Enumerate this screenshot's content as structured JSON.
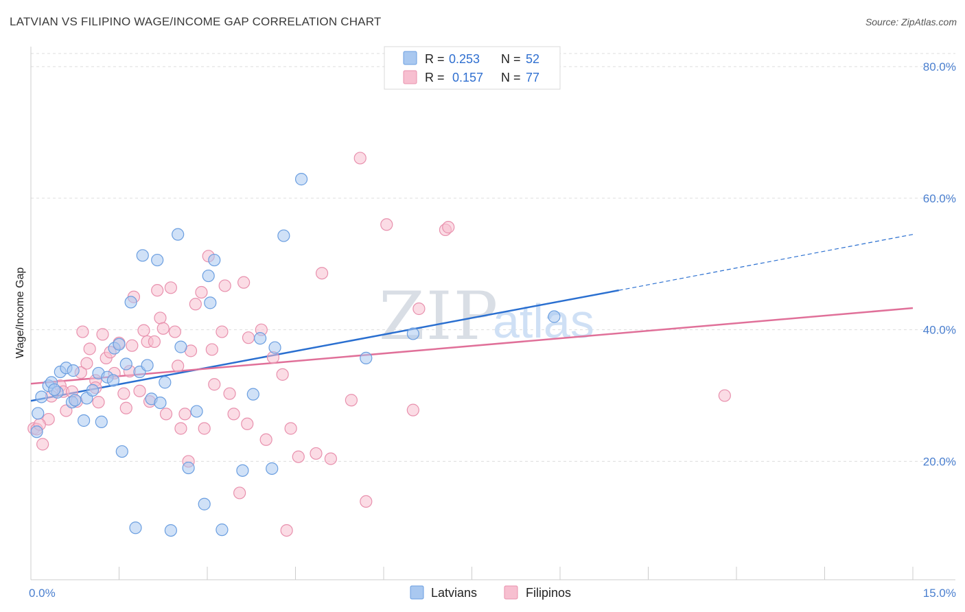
{
  "title": "LATVIAN VS FILIPINO WAGE/INCOME GAP CORRELATION CHART",
  "source": "Source: ZipAtlas.com",
  "watermark": {
    "zip": "ZIP",
    "atlas": "atlas"
  },
  "colors": {
    "latvians_fill": "#a9c8f0",
    "latvians_stroke": "#6a9ee0",
    "latvians_line": "#2a6fd0",
    "filipinos_fill": "#f7bfd0",
    "filipinos_stroke": "#e890ad",
    "filipinos_line": "#e07099",
    "grid": "#dddddd",
    "tick_text": "#4a7fcf"
  },
  "legend": {
    "rows": [
      {
        "r_label": "R =",
        "r_value": "0.253",
        "n_label": "N =",
        "n_value": "52",
        "series": "latvians"
      },
      {
        "r_label": "R =",
        "r_value": "0.157",
        "n_label": "N =",
        "n_value": "77",
        "series": "filipinos"
      }
    ]
  },
  "chart_data": {
    "type": "scatter",
    "title": "LATVIAN VS FILIPINO WAGE/INCOME GAP CORRELATION CHART",
    "xlabel": "",
    "ylabel": "Wage/Income Gap",
    "xlim": [
      0,
      15
    ],
    "ylim": [
      2,
      82
    ],
    "x_tick_labels": [
      {
        "value": 0,
        "label": "0.0%"
      },
      {
        "value": 15,
        "label": "15.0%"
      }
    ],
    "y_tick_labels": [
      {
        "value": 20,
        "label": "20.0%"
      },
      {
        "value": 40,
        "label": "40.0%"
      },
      {
        "value": 60,
        "label": "60.0%"
      },
      {
        "value": 80,
        "label": "80.0%"
      }
    ],
    "grid": true,
    "legend_position": "top-center",
    "series": [
      {
        "name": "Latvians",
        "color": "#a9c8f0",
        "trend": {
          "x_start": 0,
          "y_start": 29.2,
          "x_solid_end": 10.0,
          "y_solid_end": 46.0,
          "x_dash_end": 15.0,
          "y_dash_end": 54.5
        },
        "points": [
          [
            0.1,
            24.5
          ],
          [
            0.12,
            27.3
          ],
          [
            0.18,
            29.8
          ],
          [
            0.3,
            31.5
          ],
          [
            0.35,
            32.0
          ],
          [
            0.45,
            30.5
          ],
          [
            0.5,
            33.6
          ],
          [
            0.6,
            34.2
          ],
          [
            0.7,
            29.0
          ],
          [
            0.72,
            33.8
          ],
          [
            0.9,
            26.2
          ],
          [
            0.95,
            29.6
          ],
          [
            1.05,
            30.8
          ],
          [
            1.15,
            33.4
          ],
          [
            1.2,
            26.0
          ],
          [
            1.3,
            32.8
          ],
          [
            1.4,
            32.3
          ],
          [
            1.42,
            37.2
          ],
          [
            1.5,
            37.8
          ],
          [
            1.55,
            21.5
          ],
          [
            1.62,
            34.8
          ],
          [
            1.7,
            44.2
          ],
          [
            1.78,
            9.9
          ],
          [
            1.85,
            33.6
          ],
          [
            1.9,
            51.3
          ],
          [
            1.98,
            34.6
          ],
          [
            2.05,
            29.5
          ],
          [
            2.15,
            50.6
          ],
          [
            2.2,
            28.9
          ],
          [
            2.28,
            32.0
          ],
          [
            2.38,
            9.5
          ],
          [
            2.5,
            54.5
          ],
          [
            2.55,
            37.4
          ],
          [
            2.68,
            19.0
          ],
          [
            2.82,
            27.6
          ],
          [
            2.95,
            13.5
          ],
          [
            3.02,
            48.2
          ],
          [
            3.05,
            44.1
          ],
          [
            3.12,
            50.6
          ],
          [
            3.25,
            9.6
          ],
          [
            3.6,
            18.6
          ],
          [
            3.78,
            30.2
          ],
          [
            3.9,
            38.7
          ],
          [
            4.1,
            18.9
          ],
          [
            4.15,
            37.3
          ],
          [
            4.3,
            54.3
          ],
          [
            4.6,
            62.9
          ],
          [
            5.7,
            35.7
          ],
          [
            6.5,
            39.4
          ],
          [
            8.9,
            42.0
          ],
          [
            0.75,
            29.3
          ],
          [
            0.4,
            30.9
          ]
        ]
      },
      {
        "name": "Filipinos",
        "color": "#f7bfd0",
        "trend": {
          "x_start": 0,
          "y_start": 31.8,
          "x_end": 15.0,
          "y_end": 43.3
        },
        "points": [
          [
            0.05,
            25.0
          ],
          [
            0.1,
            24.9
          ],
          [
            0.2,
            22.6
          ],
          [
            0.3,
            26.4
          ],
          [
            0.35,
            29.9
          ],
          [
            0.5,
            31.5
          ],
          [
            0.55,
            30.6
          ],
          [
            0.6,
            27.7
          ],
          [
            0.7,
            30.6
          ],
          [
            0.78,
            29.1
          ],
          [
            0.85,
            33.5
          ],
          [
            0.88,
            39.7
          ],
          [
            0.95,
            34.9
          ],
          [
            1.0,
            37.1
          ],
          [
            1.1,
            32.3
          ],
          [
            1.15,
            29.0
          ],
          [
            1.22,
            39.3
          ],
          [
            1.28,
            35.7
          ],
          [
            1.35,
            36.6
          ],
          [
            1.42,
            33.4
          ],
          [
            1.5,
            38.0
          ],
          [
            1.58,
            30.3
          ],
          [
            1.62,
            28.1
          ],
          [
            1.68,
            33.7
          ],
          [
            1.72,
            37.6
          ],
          [
            1.75,
            45.0
          ],
          [
            1.85,
            30.7
          ],
          [
            1.92,
            39.9
          ],
          [
            1.98,
            38.2
          ],
          [
            2.02,
            29.1
          ],
          [
            2.1,
            38.2
          ],
          [
            2.15,
            46.0
          ],
          [
            2.2,
            41.8
          ],
          [
            2.25,
            40.2
          ],
          [
            2.3,
            27.2
          ],
          [
            2.38,
            46.4
          ],
          [
            2.45,
            39.7
          ],
          [
            2.5,
            34.5
          ],
          [
            2.55,
            25.0
          ],
          [
            2.62,
            27.2
          ],
          [
            2.68,
            20.0
          ],
          [
            2.72,
            36.8
          ],
          [
            2.8,
            43.9
          ],
          [
            2.9,
            45.7
          ],
          [
            2.95,
            25.0
          ],
          [
            3.02,
            51.2
          ],
          [
            3.08,
            37.0
          ],
          [
            3.12,
            31.7
          ],
          [
            3.25,
            39.7
          ],
          [
            3.3,
            46.7
          ],
          [
            3.38,
            30.3
          ],
          [
            3.45,
            27.2
          ],
          [
            3.55,
            15.2
          ],
          [
            3.62,
            47.2
          ],
          [
            3.68,
            25.7
          ],
          [
            3.92,
            40.0
          ],
          [
            4.0,
            23.3
          ],
          [
            4.12,
            35.8
          ],
          [
            4.28,
            33.2
          ],
          [
            4.35,
            9.5
          ],
          [
            4.42,
            25.0
          ],
          [
            4.55,
            20.7
          ],
          [
            4.85,
            21.2
          ],
          [
            4.95,
            48.6
          ],
          [
            5.1,
            20.4
          ],
          [
            5.45,
            29.3
          ],
          [
            5.6,
            66.1
          ],
          [
            5.7,
            13.9
          ],
          [
            6.05,
            56.0
          ],
          [
            6.5,
            27.8
          ],
          [
            6.6,
            43.2
          ],
          [
            7.05,
            55.2
          ],
          [
            7.1,
            55.6
          ],
          [
            11.8,
            30.0
          ],
          [
            0.15,
            25.6
          ],
          [
            1.1,
            31.2
          ],
          [
            3.7,
            38.8
          ]
        ]
      }
    ]
  },
  "bottom_legend": [
    {
      "label": "Latvians",
      "series": "latvians"
    },
    {
      "label": "Filipinos",
      "series": "filipinos"
    }
  ]
}
